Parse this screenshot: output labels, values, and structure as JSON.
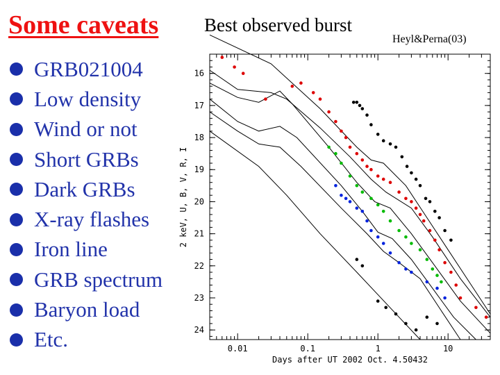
{
  "slide": {
    "title": "Some caveats",
    "bullets": [
      "GRB021004",
      "Low density",
      "Wind or not",
      "Short GRBs",
      "Dark GRBs",
      "X-ray flashes",
      "Iron line",
      "GRB spectrum",
      "Baryon load",
      "Etc."
    ],
    "chart_heading": "Best observed burst",
    "citation": "Heyl&Perna(03)"
  },
  "chart_data": {
    "type": "scatter",
    "title": "Best observed burst",
    "xlabel": "Days after UT 2002 Oct. 4.50432",
    "ylabel": "2 keV, U, B, V, R, I",
    "x_scale": "log",
    "xlim": [
      0.004,
      40
    ],
    "ylim": [
      24.3,
      15.4
    ],
    "x_ticks": [
      {
        "v": 0.01,
        "label": "0.01"
      },
      {
        "v": 0.1,
        "label": "0.1"
      },
      {
        "v": 1,
        "label": "1"
      },
      {
        "v": 10,
        "label": "10"
      }
    ],
    "y_ticks": [
      16,
      17,
      18,
      19,
      20,
      21,
      22,
      23,
      24
    ],
    "model_curves": [
      [
        [
          0.004,
          14.8
        ],
        [
          0.03,
          15.7
        ],
        [
          0.15,
          17.1
        ],
        [
          0.5,
          18.3
        ],
        [
          0.8,
          18.7
        ],
        [
          1.2,
          18.8
        ],
        [
          2.5,
          19.5
        ],
        [
          5,
          20.5
        ],
        [
          10,
          21.5
        ],
        [
          20,
          22.5
        ],
        [
          40,
          23.5
        ]
      ],
      [
        [
          0.004,
          15.9
        ],
        [
          0.01,
          16.5
        ],
        [
          0.03,
          16.6
        ],
        [
          0.05,
          16.8
        ],
        [
          0.15,
          17.7
        ],
        [
          0.4,
          18.6
        ],
        [
          0.8,
          19.3
        ],
        [
          1.3,
          19.7
        ],
        [
          3,
          20.2
        ],
        [
          6,
          21.1
        ],
        [
          15,
          22.4
        ],
        [
          40,
          23.6
        ]
      ],
      [
        [
          0.004,
          16.3
        ],
        [
          0.01,
          16.75
        ],
        [
          0.02,
          16.9
        ],
        [
          0.04,
          16.55
        ],
        [
          0.06,
          16.95
        ],
        [
          0.2,
          18.3
        ],
        [
          0.5,
          19.4
        ],
        [
          0.9,
          20.0
        ],
        [
          1.5,
          20.2
        ],
        [
          3,
          21.0
        ],
        [
          6,
          21.9
        ],
        [
          15,
          23.1
        ],
        [
          40,
          24.1
        ]
      ],
      [
        [
          0.004,
          16.8
        ],
        [
          0.01,
          17.5
        ],
        [
          0.02,
          17.8
        ],
        [
          0.04,
          17.65
        ],
        [
          0.07,
          18.0
        ],
        [
          0.3,
          19.5
        ],
        [
          0.6,
          20.3
        ],
        [
          1.0,
          20.95
        ],
        [
          1.6,
          21.15
        ],
        [
          3,
          21.8
        ],
        [
          6,
          22.7
        ],
        [
          12,
          23.6
        ],
        [
          25,
          24.3
        ]
      ],
      [
        [
          0.004,
          17.2
        ],
        [
          0.01,
          17.8
        ],
        [
          0.02,
          18.2
        ],
        [
          0.04,
          18.3
        ],
        [
          0.08,
          18.9
        ],
        [
          0.3,
          20.2
        ],
        [
          0.7,
          21.0
        ],
        [
          1.2,
          21.55
        ],
        [
          2,
          21.9
        ],
        [
          4,
          22.4
        ],
        [
          8,
          23.4
        ],
        [
          15,
          24.3
        ]
      ],
      [
        [
          0.004,
          17.8
        ],
        [
          0.02,
          18.9
        ],
        [
          0.05,
          19.8
        ],
        [
          0.15,
          21.0
        ],
        [
          0.5,
          22.2
        ],
        [
          1.0,
          22.9
        ],
        [
          2,
          23.6
        ],
        [
          4,
          24.3
        ]
      ]
    ],
    "series": [
      {
        "color": "#000000",
        "points": [
          [
            0.45,
            16.9
          ],
          [
            0.5,
            16.9
          ],
          [
            0.55,
            17.0
          ],
          [
            0.6,
            17.1
          ],
          [
            0.7,
            17.3
          ],
          [
            0.8,
            17.6
          ],
          [
            1.0,
            17.9
          ],
          [
            1.2,
            18.1
          ],
          [
            1.5,
            18.2
          ],
          [
            1.8,
            18.3
          ],
          [
            2.2,
            18.6
          ],
          [
            2.6,
            18.9
          ],
          [
            3.0,
            19.1
          ],
          [
            3.5,
            19.3
          ],
          [
            4.0,
            19.5
          ],
          [
            4.8,
            19.9
          ],
          [
            5.5,
            20.0
          ],
          [
            6.5,
            20.3
          ],
          [
            7.5,
            20.5
          ],
          [
            9,
            20.9
          ],
          [
            11,
            21.2
          ]
        ]
      },
      {
        "color": "#dd0000",
        "points": [
          [
            0.006,
            15.5
          ],
          [
            0.009,
            15.8
          ],
          [
            0.012,
            16.0
          ],
          [
            0.025,
            16.8
          ],
          [
            0.06,
            16.4
          ],
          [
            0.08,
            16.3
          ],
          [
            0.12,
            16.6
          ],
          [
            0.15,
            16.8
          ],
          [
            0.2,
            17.2
          ],
          [
            0.25,
            17.5
          ],
          [
            0.3,
            17.8
          ],
          [
            0.35,
            18.0
          ],
          [
            0.4,
            18.3
          ],
          [
            0.5,
            18.5
          ],
          [
            0.6,
            18.7
          ],
          [
            0.7,
            18.9
          ],
          [
            0.8,
            19.0
          ],
          [
            1.0,
            19.2
          ],
          [
            1.2,
            19.3
          ],
          [
            1.5,
            19.4
          ],
          [
            2.0,
            19.7
          ],
          [
            2.5,
            19.9
          ],
          [
            3.0,
            20.0
          ],
          [
            3.5,
            20.2
          ],
          [
            4.0,
            20.4
          ],
          [
            4.5,
            20.6
          ],
          [
            5.5,
            20.9
          ],
          [
            6.5,
            21.2
          ],
          [
            7.5,
            21.5
          ],
          [
            9,
            21.9
          ],
          [
            11,
            22.2
          ],
          [
            13,
            22.6
          ],
          [
            15,
            23.0
          ],
          [
            25,
            23.3
          ],
          [
            35,
            23.6
          ]
        ]
      },
      {
        "color": "#00bb00",
        "points": [
          [
            0.2,
            18.3
          ],
          [
            0.25,
            18.5
          ],
          [
            0.3,
            18.8
          ],
          [
            0.4,
            19.2
          ],
          [
            0.5,
            19.5
          ],
          [
            0.6,
            19.7
          ],
          [
            0.8,
            19.9
          ],
          [
            1.0,
            20.1
          ],
          [
            1.2,
            20.3
          ],
          [
            1.5,
            20.6
          ],
          [
            2.0,
            20.9
          ],
          [
            2.5,
            21.1
          ],
          [
            3.0,
            21.3
          ],
          [
            4.0,
            21.5
          ],
          [
            5.0,
            21.8
          ],
          [
            6.0,
            22.1
          ],
          [
            7.0,
            22.3
          ],
          [
            8.0,
            22.5
          ]
        ]
      },
      {
        "color": "#0022dd",
        "points": [
          [
            0.25,
            19.5
          ],
          [
            0.3,
            19.8
          ],
          [
            0.35,
            19.9
          ],
          [
            0.4,
            20.0
          ],
          [
            0.5,
            20.2
          ],
          [
            0.6,
            20.3
          ],
          [
            0.7,
            20.6
          ],
          [
            0.8,
            20.9
          ],
          [
            1.0,
            21.1
          ],
          [
            1.2,
            21.3
          ],
          [
            1.5,
            21.6
          ],
          [
            2.0,
            21.9
          ],
          [
            2.5,
            22.1
          ],
          [
            3.0,
            22.2
          ],
          [
            5,
            22.5
          ],
          [
            7,
            22.7
          ],
          [
            9,
            23.0
          ]
        ]
      },
      {
        "color": "#000000",
        "points": [
          [
            0.5,
            21.8
          ],
          [
            0.6,
            22.0
          ],
          [
            1.0,
            23.1
          ],
          [
            1.3,
            23.3
          ],
          [
            1.8,
            23.5
          ],
          [
            2.5,
            23.8
          ],
          [
            3.5,
            24.0
          ],
          [
            5,
            23.6
          ],
          [
            7,
            23.8
          ]
        ]
      }
    ]
  }
}
